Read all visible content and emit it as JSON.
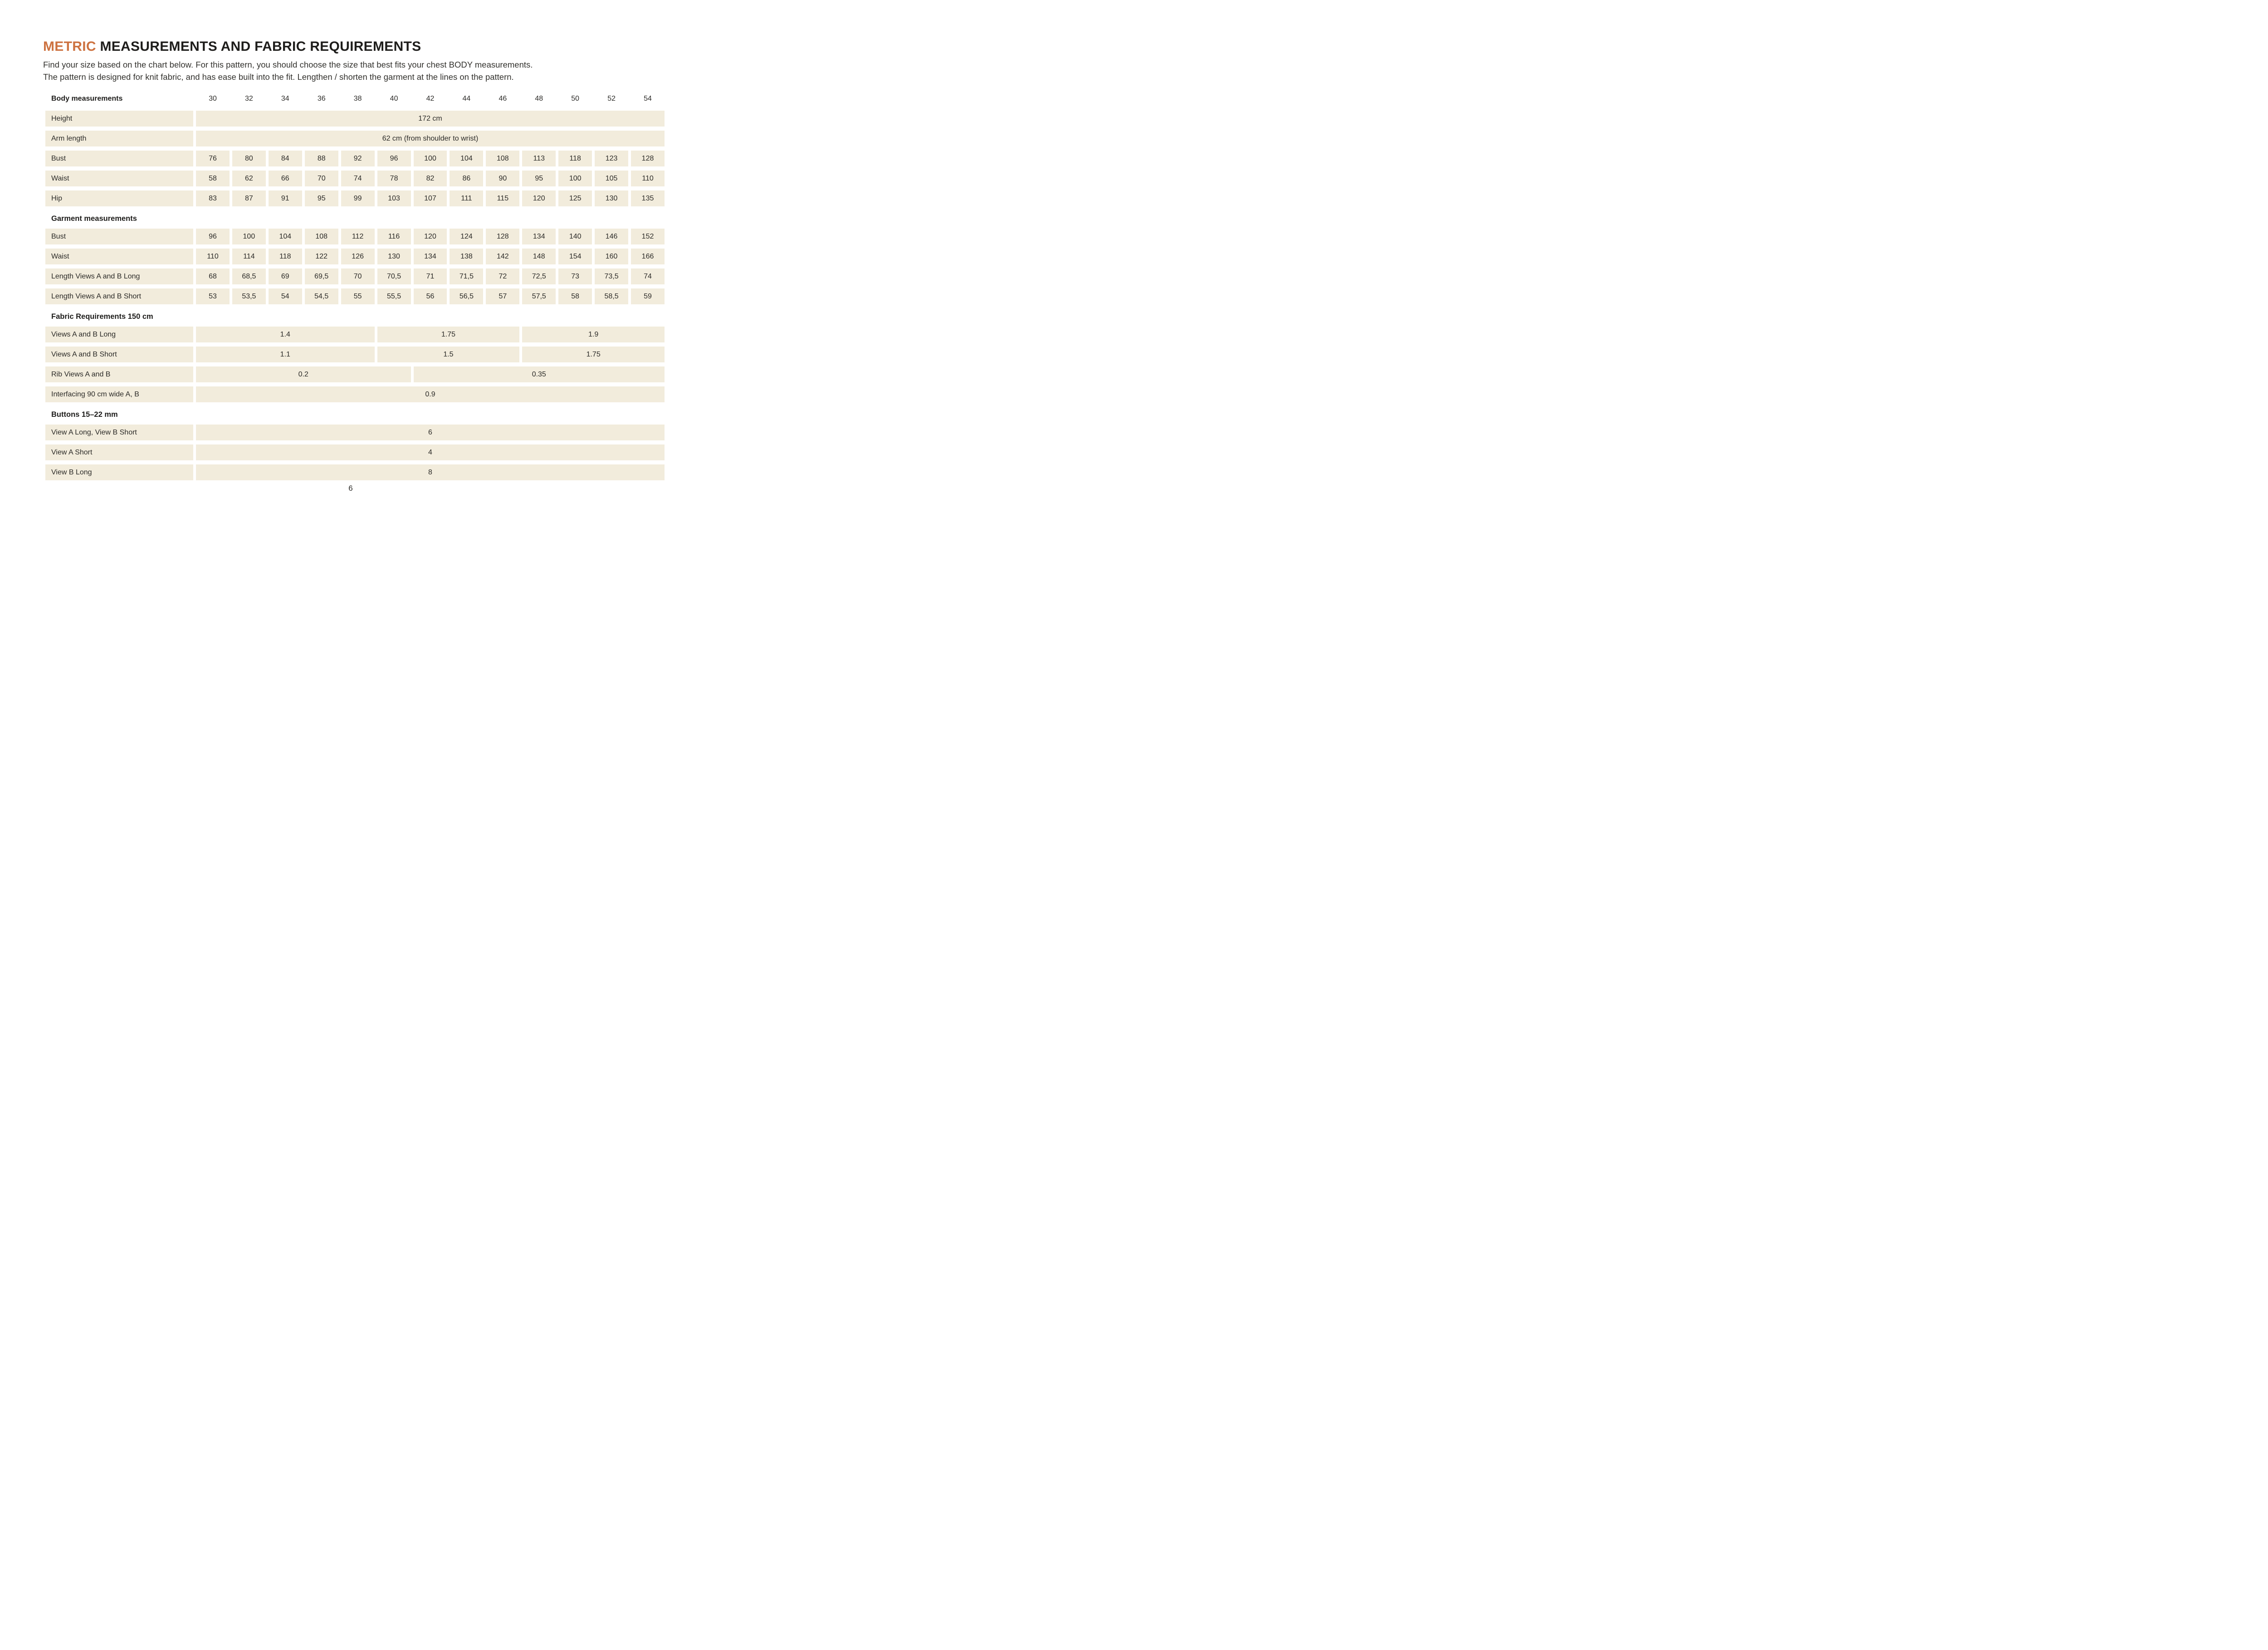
{
  "page": {
    "title_accent": "METRIC",
    "title_rest": "MEASUREMENTS AND FABRIC REQUIREMENTS",
    "intro_line1": "Find your size based on the chart below. For this pattern, you should choose the size that best fits your chest BODY measurements.",
    "intro_line2": "The pattern is designed for knit fabric, and has ease built into the fit. Lengthen / shorten the garment at the lines on the pattern.",
    "page_number": "6",
    "colors": {
      "accent_orange": "#cd7240",
      "cell_beige": "#f2ecdc",
      "text_dark": "#1e1d1b"
    }
  },
  "table": {
    "sizes": [
      "30",
      "32",
      "34",
      "36",
      "38",
      "40",
      "42",
      "44",
      "46",
      "48",
      "50",
      "52",
      "54"
    ],
    "rows": [
      {
        "type": "sizes",
        "label": "Body measurements"
      },
      {
        "type": "data",
        "label": "Height",
        "cells": [
          {
            "v": "172 cm",
            "s": 13
          }
        ]
      },
      {
        "type": "data",
        "label": "Arm length",
        "cells": [
          {
            "v": "62 cm (from shoulder to wrist)",
            "s": 13
          }
        ]
      },
      {
        "type": "data",
        "label": "Bust",
        "cells": [
          {
            "v": "76"
          },
          {
            "v": "80"
          },
          {
            "v": "84"
          },
          {
            "v": "88"
          },
          {
            "v": "92"
          },
          {
            "v": "96"
          },
          {
            "v": "100"
          },
          {
            "v": "104"
          },
          {
            "v": "108"
          },
          {
            "v": "113"
          },
          {
            "v": "118"
          },
          {
            "v": "123"
          },
          {
            "v": "128"
          }
        ]
      },
      {
        "type": "data",
        "label": "Waist",
        "cells": [
          {
            "v": "58"
          },
          {
            "v": "62"
          },
          {
            "v": "66"
          },
          {
            "v": "70"
          },
          {
            "v": "74"
          },
          {
            "v": "78"
          },
          {
            "v": "82"
          },
          {
            "v": "86"
          },
          {
            "v": "90"
          },
          {
            "v": "95"
          },
          {
            "v": "100"
          },
          {
            "v": "105"
          },
          {
            "v": "110"
          }
        ]
      },
      {
        "type": "data",
        "label": "Hip",
        "cells": [
          {
            "v": "83"
          },
          {
            "v": "87"
          },
          {
            "v": "91"
          },
          {
            "v": "95"
          },
          {
            "v": "99"
          },
          {
            "v": "103"
          },
          {
            "v": "107"
          },
          {
            "v": "111"
          },
          {
            "v": "115"
          },
          {
            "v": "120"
          },
          {
            "v": "125"
          },
          {
            "v": "130"
          },
          {
            "v": "135"
          }
        ]
      },
      {
        "type": "section",
        "label": "Garment measurements"
      },
      {
        "type": "data",
        "label": "Bust",
        "cells": [
          {
            "v": "96"
          },
          {
            "v": "100"
          },
          {
            "v": "104"
          },
          {
            "v": "108"
          },
          {
            "v": "112"
          },
          {
            "v": "116"
          },
          {
            "v": "120"
          },
          {
            "v": "124"
          },
          {
            "v": "128"
          },
          {
            "v": "134"
          },
          {
            "v": "140"
          },
          {
            "v": "146"
          },
          {
            "v": "152"
          }
        ]
      },
      {
        "type": "data",
        "label": "Waist",
        "cells": [
          {
            "v": "110"
          },
          {
            "v": "114"
          },
          {
            "v": "118"
          },
          {
            "v": "122"
          },
          {
            "v": "126"
          },
          {
            "v": "130"
          },
          {
            "v": "134"
          },
          {
            "v": "138"
          },
          {
            "v": "142"
          },
          {
            "v": "148"
          },
          {
            "v": "154"
          },
          {
            "v": "160"
          },
          {
            "v": "166"
          }
        ]
      },
      {
        "type": "data",
        "label": "Length Views A and B Long",
        "cells": [
          {
            "v": "68"
          },
          {
            "v": "68,5"
          },
          {
            "v": "69"
          },
          {
            "v": "69,5"
          },
          {
            "v": "70"
          },
          {
            "v": "70,5"
          },
          {
            "v": "71"
          },
          {
            "v": "71,5"
          },
          {
            "v": "72"
          },
          {
            "v": "72,5"
          },
          {
            "v": "73"
          },
          {
            "v": "73,5"
          },
          {
            "v": "74"
          }
        ]
      },
      {
        "type": "data",
        "label": "Length Views A and B Short",
        "cells": [
          {
            "v": "53"
          },
          {
            "v": "53,5"
          },
          {
            "v": "54"
          },
          {
            "v": "54,5"
          },
          {
            "v": "55"
          },
          {
            "v": "55,5"
          },
          {
            "v": "56"
          },
          {
            "v": "56,5"
          },
          {
            "v": "57"
          },
          {
            "v": "57,5"
          },
          {
            "v": "58"
          },
          {
            "v": "58,5"
          },
          {
            "v": "59"
          }
        ]
      },
      {
        "type": "section",
        "label": "Fabric Requirements 150 cm"
      },
      {
        "type": "data",
        "label": "Views A and B Long",
        "cells": [
          {
            "v": "1.4",
            "s": 5
          },
          {
            "v": "1.75",
            "s": 4
          },
          {
            "v": "1.9",
            "s": 4
          }
        ]
      },
      {
        "type": "data",
        "label": "Views A and B Short",
        "cells": [
          {
            "v": "1.1",
            "s": 5
          },
          {
            "v": "1.5",
            "s": 4
          },
          {
            "v": "1.75",
            "s": 4
          }
        ]
      },
      {
        "type": "data",
        "label": "Rib Views A and B",
        "cells": [
          {
            "v": "0.2",
            "s": 6
          },
          {
            "v": "0.35",
            "s": 7
          }
        ]
      },
      {
        "type": "data",
        "label": "Interfacing 90 cm wide A, B",
        "cells": [
          {
            "v": "0.9",
            "s": 13
          }
        ]
      },
      {
        "type": "section",
        "label": "Buttons 15–22 mm"
      },
      {
        "type": "data",
        "label": "View A Long, View B Short",
        "cells": [
          {
            "v": "6",
            "s": 13
          }
        ]
      },
      {
        "type": "data",
        "label": "View A Short",
        "cells": [
          {
            "v": "4",
            "s": 13
          }
        ]
      },
      {
        "type": "data",
        "label": "View B Long",
        "cells": [
          {
            "v": "8",
            "s": 13
          }
        ]
      }
    ]
  }
}
